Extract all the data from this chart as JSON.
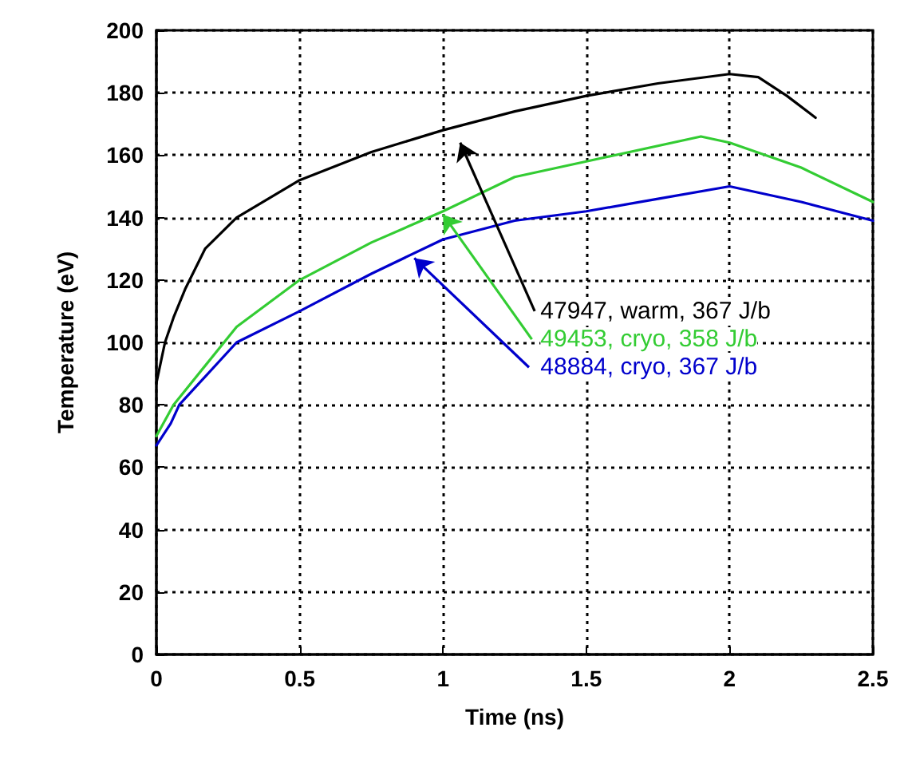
{
  "chart_data": {
    "type": "line",
    "xlabel": "Time (ns)",
    "ylabel": "Temperature (eV)",
    "xlim": [
      0,
      2.5
    ],
    "xticks": [
      0,
      0.5,
      1,
      1.5,
      2,
      2.5
    ],
    "ylim": [
      0,
      200
    ],
    "yticks": [
      0,
      20,
      40,
      60,
      80,
      100,
      120,
      140,
      160,
      180,
      200
    ],
    "grid": true,
    "legend": false,
    "marker": "none",
    "line_style": "solid",
    "series": [
      {
        "name": "47947, warm, 367 J/b",
        "color": "#000000",
        "x": [
          0,
          0.03,
          0.06,
          0.1,
          0.17,
          0.28,
          0.5,
          0.75,
          1,
          1.25,
          1.5,
          1.75,
          2,
          2.1,
          2.2,
          2.3
        ],
        "values": [
          87,
          100,
          108,
          117,
          130,
          140,
          152,
          161,
          168,
          174,
          179,
          183,
          186,
          185,
          179,
          172
        ]
      },
      {
        "name": "49453, cryo, 358 J/b",
        "color": "#33cc33",
        "x": [
          0,
          0.06,
          0.28,
          0.5,
          0.75,
          1,
          1.25,
          1.5,
          1.9,
          2,
          2.25,
          2.5
        ],
        "values": [
          70,
          80,
          105,
          120,
          132,
          142,
          153,
          158,
          166,
          164,
          156,
          145
        ]
      },
      {
        "name": "48884, cryo, 367 J/b",
        "color": "#0000cc",
        "x": [
          0,
          0.05,
          0.08,
          0.28,
          0.5,
          0.75,
          1,
          1.25,
          1.5,
          1.75,
          2,
          2.25,
          2.5
        ],
        "values": [
          67,
          74,
          80,
          100,
          110,
          122,
          133,
          139,
          142,
          146,
          150,
          145,
          139
        ]
      }
    ]
  }
}
